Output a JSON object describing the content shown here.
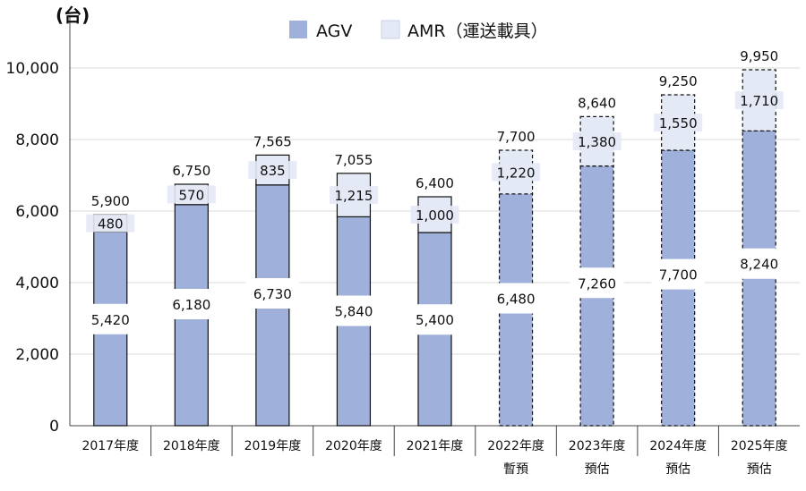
{
  "chart_data": {
    "type": "bar",
    "stacked": true,
    "unit_label": "(台)",
    "categories": [
      [
        "2017年度",
        ""
      ],
      [
        "2018年度",
        ""
      ],
      [
        "2019年度",
        ""
      ],
      [
        "2020年度",
        ""
      ],
      [
        "2021年度",
        ""
      ],
      [
        "2022年度",
        "暫預"
      ],
      [
        "2023年度",
        "預估"
      ],
      [
        "2024年度",
        "預估"
      ],
      [
        "2025年度",
        "預估"
      ]
    ],
    "series": [
      {
        "name": "AGV",
        "color": "#9fb0db",
        "values": [
          5420,
          6180,
          6730,
          5840,
          5400,
          6480,
          7260,
          7700,
          8240
        ]
      },
      {
        "name": "AMR（運送載具）",
        "color": "#e4e9f6",
        "values": [
          480,
          570,
          835,
          1215,
          1000,
          1220,
          1380,
          1550,
          1710
        ]
      }
    ],
    "series_labels": [
      [
        "5,420",
        "6,180",
        "6,730",
        "5,840",
        "5,400",
        "6,480",
        "7,260",
        "7,700",
        "8,240"
      ],
      [
        "480",
        "570",
        "835",
        "1,215",
        "1,000",
        "1,220",
        "1,380",
        "1,550",
        "1,710"
      ]
    ],
    "totals": [
      5900,
      6750,
      7565,
      7055,
      6400,
      7700,
      8640,
      9250,
      9950
    ],
    "total_labels": [
      "5,900",
      "6,750",
      "7,565",
      "7,055",
      "6,400",
      "7,700",
      "8,640",
      "9,250",
      "9,950"
    ],
    "forecast_flags": [
      false,
      false,
      false,
      false,
      false,
      true,
      true,
      true,
      true
    ],
    "yticks": [
      "0",
      "2,000",
      "4,000",
      "6,000",
      "8,000",
      "10,000"
    ],
    "ylim": [
      0,
      10000
    ],
    "grid": true,
    "legend_position": "top"
  }
}
